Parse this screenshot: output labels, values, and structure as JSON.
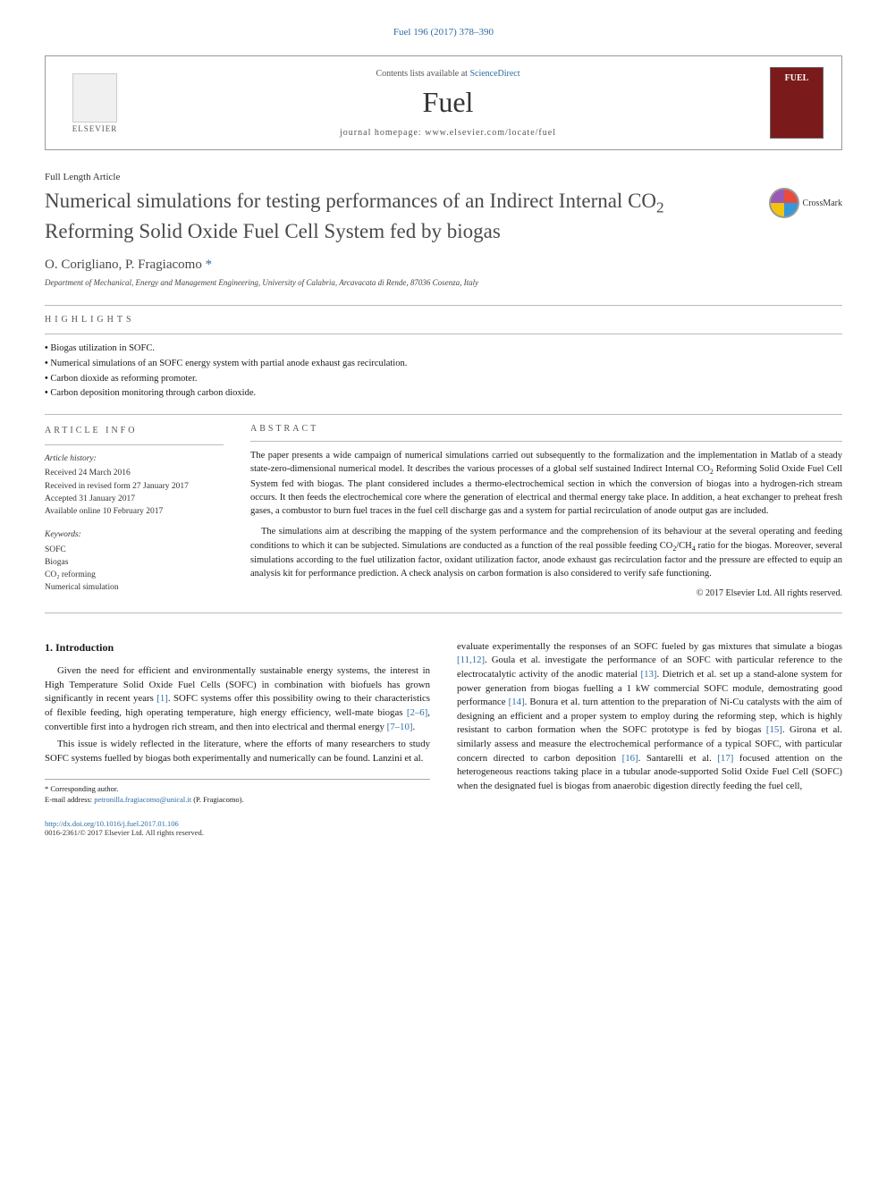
{
  "citation": "Fuel 196 (2017) 378–390",
  "header": {
    "contents_prefix": "Contents lists available at ",
    "contents_link": "ScienceDirect",
    "journal": "Fuel",
    "homepage_label": "journal homepage: ",
    "homepage_url": "www.elsevier.com/locate/fuel",
    "publisher": "ELSEVIER",
    "cover_label": "FUEL"
  },
  "article": {
    "type": "Full Length Article",
    "title_html": "Numerical simulations for testing performances of an Indirect Internal CO<sub>2</sub> Reforming Solid Oxide Fuel Cell System fed by biogas",
    "authors_html": "O. Corigliano, P. Fragiacomo <span class=\"star\">*</span>",
    "affiliation": "Department of Mechanical, Energy and Management Engineering, University of Calabria, Arcavacata di Rende, 87036 Cosenza, Italy",
    "crossmark": "CrossMark"
  },
  "highlights": {
    "label": "HIGHLIGHTS",
    "items": [
      "Biogas utilization in SOFC.",
      "Numerical simulations of an SOFC energy system with partial anode exhaust gas recirculation.",
      "Carbon dioxide as reforming promoter.",
      "Carbon deposition monitoring through carbon dioxide."
    ]
  },
  "info": {
    "label": "ARTICLE INFO",
    "history_label": "Article history:",
    "history": [
      "Received 24 March 2016",
      "Received in revised form 27 January 2017",
      "Accepted 31 January 2017",
      "Available online 10 February 2017"
    ],
    "keywords_label": "Keywords:",
    "keywords": [
      "SOFC",
      "Biogas",
      "CO₂ reforming",
      "Numerical simulation"
    ]
  },
  "abstract": {
    "label": "ABSTRACT",
    "paragraphs_html": [
      "The paper presents a wide campaign of numerical simulations carried out subsequently to the formalization and the implementation in Matlab of a steady state-zero-dimensional numerical model. It describes the various processes of a global self sustained Indirect Internal CO<sub>2</sub> Reforming Solid Oxide Fuel Cell System fed with biogas. The plant considered includes a thermo-electrochemical section in which the conversion of biogas into a hydrogen-rich stream occurs. It then feeds the electrochemical core where the generation of electrical and thermal energy take place. In addition, a heat exchanger to preheat fresh gases, a combustor to burn fuel traces in the fuel cell discharge gas and a system for partial recirculation of anode output gas are included.",
      "The simulations aim at describing the mapping of the system performance and the comprehension of its behaviour at the several operating and feeding conditions to which it can be subjected. Simulations are conducted as a function of the real possible feeding CO<sub>2</sub>/CH<sub>4</sub> ratio for the biogas. Moreover, several simulations according to the fuel utilization factor, oxidant utilization factor, anode exhaust gas recirculation factor and the pressure are effected to equip an analysis kit for performance prediction. A check analysis on carbon formation is also considered to verify safe functioning."
    ],
    "copyright": "© 2017 Elsevier Ltd. All rights reserved."
  },
  "body": {
    "intro_heading": "1. Introduction",
    "col1_html": "Given the need for efficient and environmentally sustainable energy systems, the interest in High Temperature Solid Oxide Fuel Cells (SOFC) in combination with biofuels has grown significantly in recent years <span class=\"ref\">[1]</span>. SOFC systems offer this possibility owing to their characteristics of flexible feeding, high operating temperature, high energy efficiency, well-mate biogas <span class=\"ref\">[2–6]</span>, convertible first into a hydrogen rich stream, and then into electrical and thermal energy <span class=\"ref\">[7–10]</span>.",
    "col1b_html": "This issue is widely reflected in the literature, where the efforts of many researchers to study SOFC systems fuelled by biogas both experimentally and numerically can be found. Lanzini et al.",
    "col2_html": "evaluate experimentally the responses of an SOFC fueled by gas mixtures that simulate a biogas <span class=\"ref\">[11,12]</span>. Goula et al. investigate the performance of an SOFC with particular reference to the electrocatalytic activity of the anodic material <span class=\"ref\">[13]</span>. Dietrich et al. set up a stand-alone system for power generation from biogas fuelling a 1 kW commercial SOFC module, demostrating good performance <span class=\"ref\">[14]</span>. Bonura et al. turn attention to the preparation of Ni-Cu catalysts with the aim of designing an efficient and a proper system to employ during the reforming step, which is highly resistant to carbon formation when the SOFC prototype is fed by biogas <span class=\"ref\">[15]</span>. Girona et al. similarly assess and measure the electrochemical performance of a typical SOFC, with particular concern directed to carbon deposition <span class=\"ref\">[16]</span>. Santarelli et al. <span class=\"ref\">[17]</span> focused attention on the heterogeneous reactions taking place in a tubular anode-supported Solid Oxide Fuel Cell (SOFC) when the designated fuel is biogas from anaerobic digestion directly feeding the fuel cell,"
  },
  "footnote": {
    "corr": "* Corresponding author.",
    "email_label": "E-mail address: ",
    "email": "petronilla.fragiacomo@unical.it",
    "email_suffix": " (P. Fragiacomo)."
  },
  "footer": {
    "doi": "http://dx.doi.org/10.1016/j.fuel.2017.01.106",
    "issn_line": "0016-2361/© 2017 Elsevier Ltd. All rights reserved."
  },
  "colors": {
    "link": "#2e6da4",
    "text": "#1a1a1a",
    "muted": "#555555",
    "rule": "#bbbbbb",
    "cover_bg": "#7a1a1a"
  }
}
